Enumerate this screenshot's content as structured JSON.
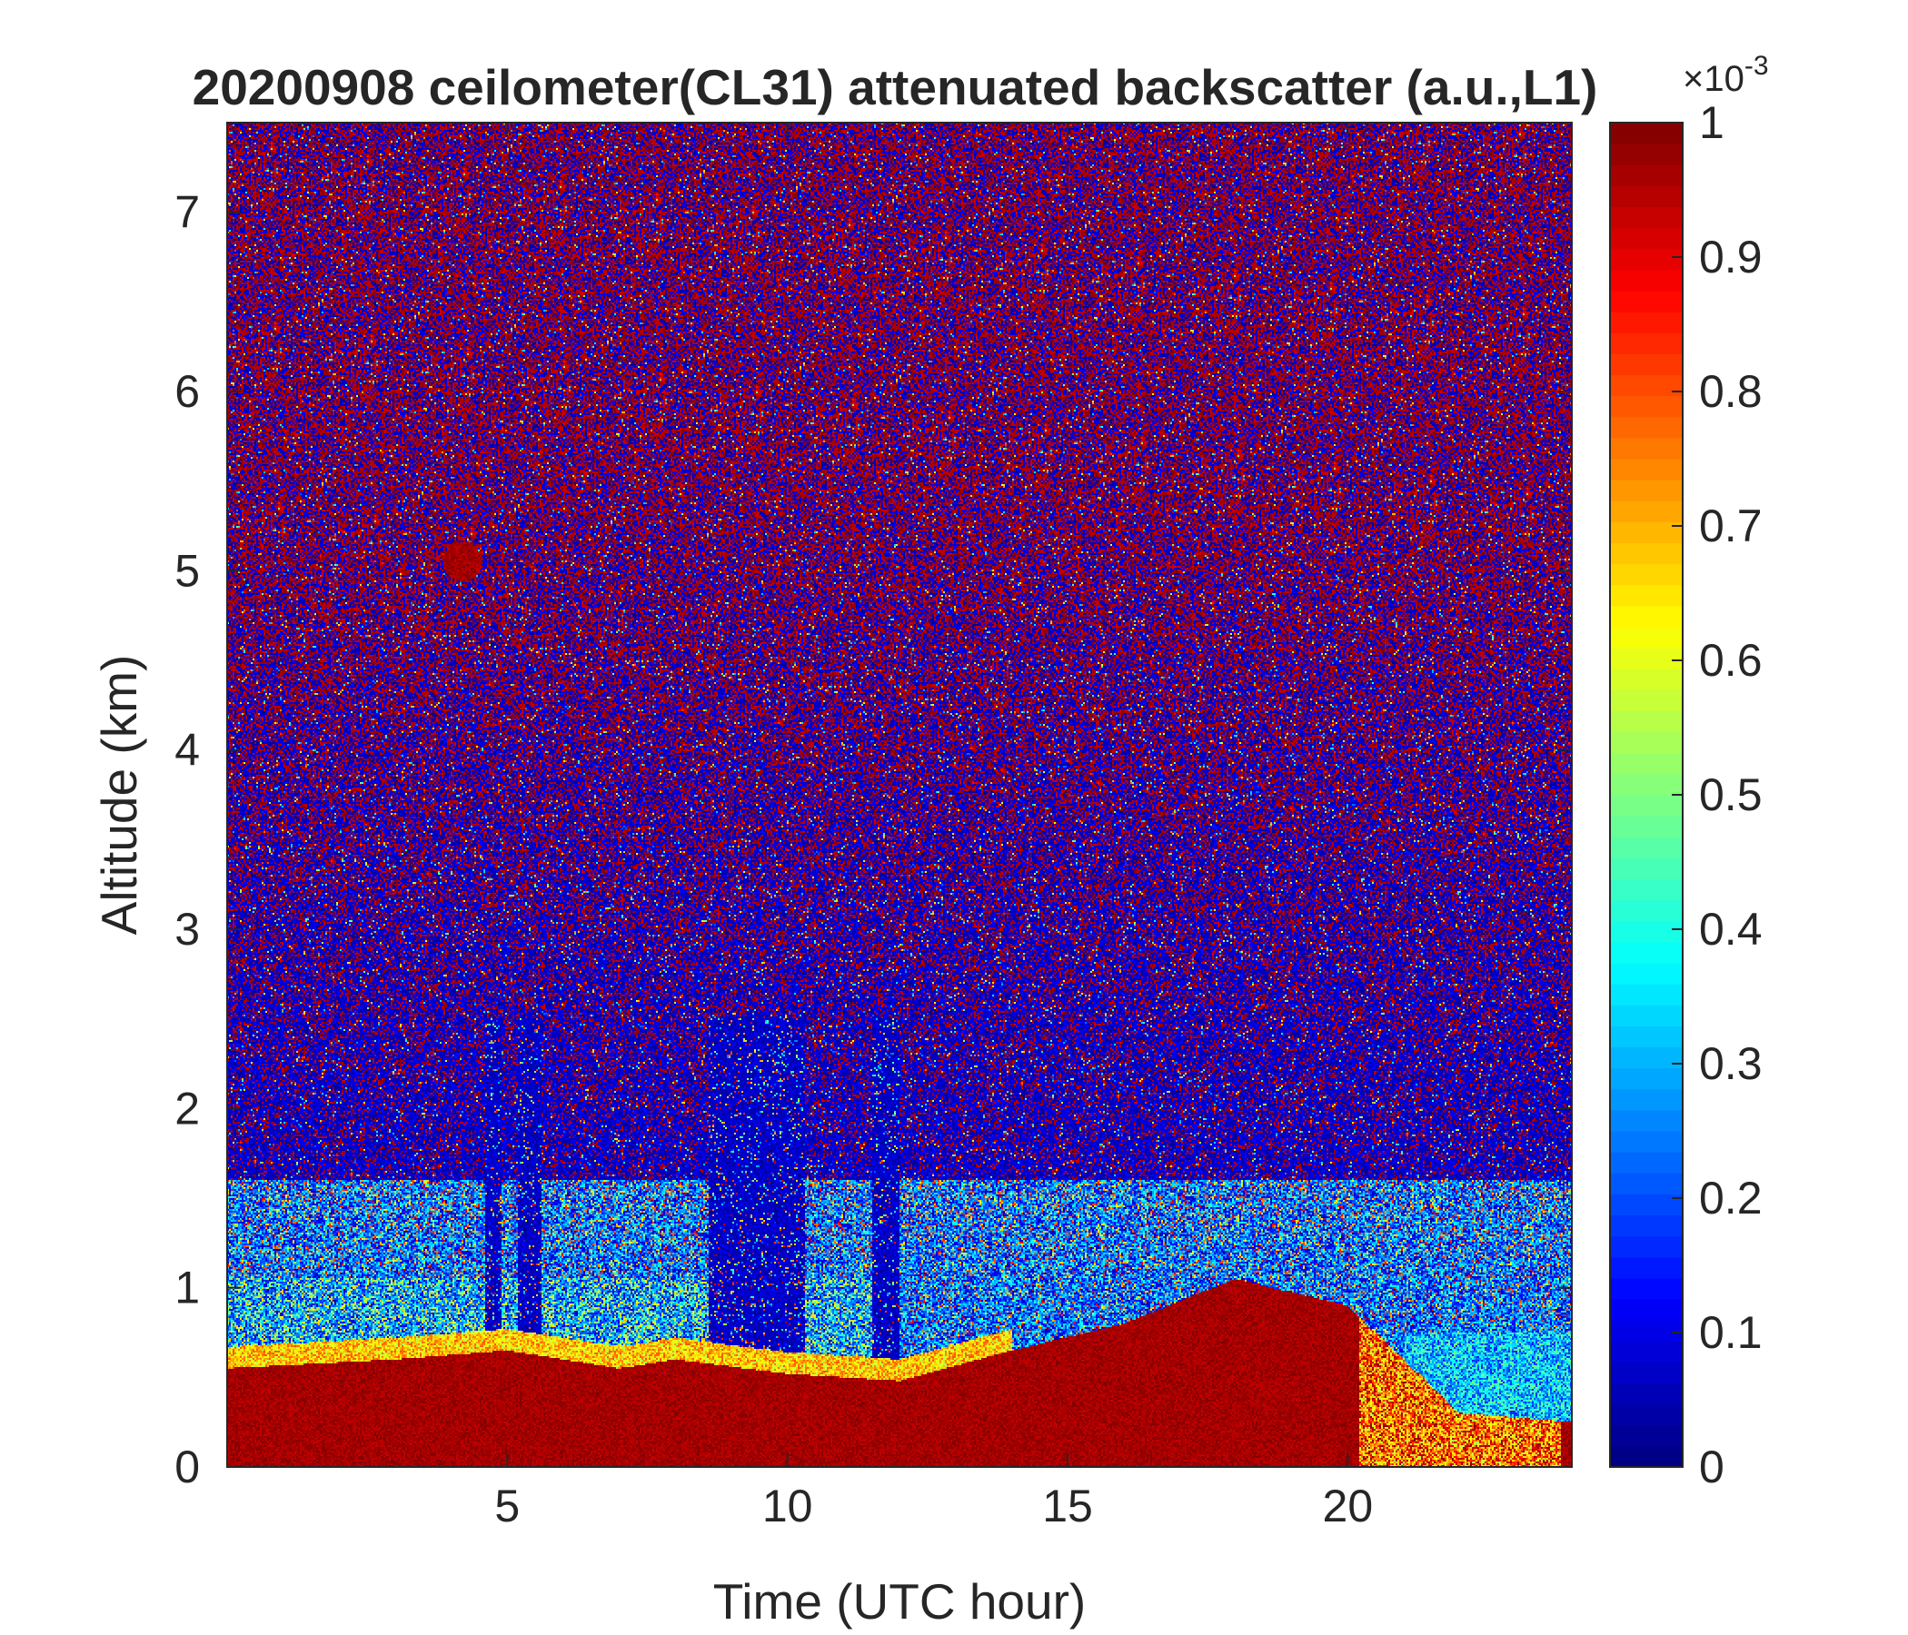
{
  "chart_data": {
    "type": "heatmap",
    "title": "20200908 ceilometer(CL31) attenuated backscatter (a.u.,L1)",
    "xlabel": "Time (UTC hour)",
    "ylabel": "Altitude (km)",
    "xlim": [
      0,
      24
    ],
    "ylim": [
      0,
      7.5
    ],
    "xticks": [
      5,
      10,
      15,
      20
    ],
    "yticks": [
      0,
      1,
      2,
      3,
      4,
      5,
      6,
      7
    ],
    "grid": false,
    "colormap": "jet",
    "colorbar": {
      "clim": [
        0,
        1
      ],
      "ticks": [
        0,
        0.1,
        0.2,
        0.3,
        0.4,
        0.5,
        0.6,
        0.7,
        0.8,
        0.9,
        1
      ],
      "exponent_label": "×10",
      "exponent_power": "-3",
      "placement": "right"
    },
    "features": [
      {
        "description": "saturated aerosol/boundary layer (value ~1)",
        "time_range": [
          0,
          24
        ],
        "top_altitude_km": [
          [
            0,
            0.55
          ],
          [
            3,
            0.6
          ],
          [
            5,
            0.65
          ],
          [
            7,
            0.55
          ],
          [
            8,
            0.6
          ],
          [
            10,
            0.52
          ],
          [
            12,
            0.48
          ],
          [
            14,
            0.65
          ],
          [
            16,
            0.8
          ],
          [
            18,
            1.05
          ],
          [
            20,
            0.9
          ],
          [
            21,
            0.6
          ],
          [
            22,
            0.3
          ],
          [
            24,
            0.25
          ]
        ]
      },
      {
        "description": "moderate transition layer above boundary layer (values ~0.4-0.7)",
        "time_range": [
          0,
          12
        ],
        "altitude_km": [
          0.55,
          1.0
        ]
      },
      {
        "description": "low-signal columns (values ~0.05)",
        "time_ranges": [
          [
            4.6,
            4.9
          ],
          [
            5.2,
            5.6
          ],
          [
            8.6,
            10.3
          ],
          [
            11.5,
            12.0
          ]
        ]
      },
      {
        "description": "isolated high-backscatter blob",
        "time": 4.2,
        "altitude_km": 5.05,
        "value": 1
      },
      {
        "description": "noise above 1.5 km alternating between ~0 and ~1",
        "altitude_km": [
          1.5,
          7.5
        ]
      }
    ]
  },
  "colors": {
    "axis": "#262626",
    "background": "#ffffff"
  }
}
